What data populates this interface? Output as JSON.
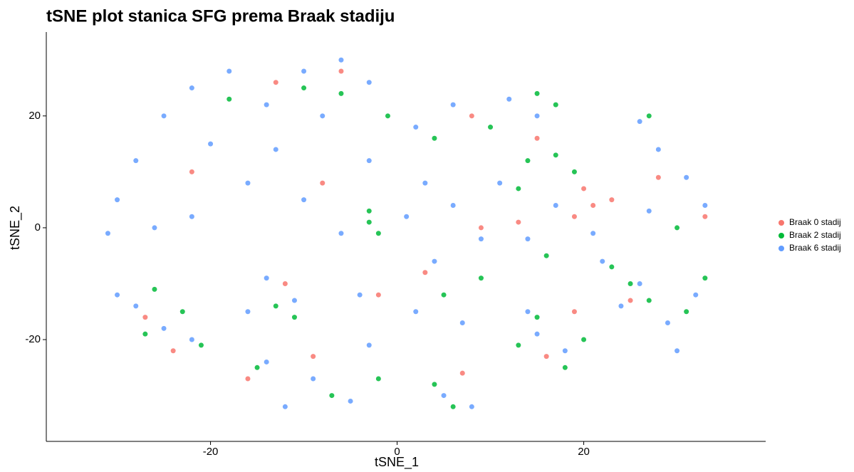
{
  "chart_data": {
    "type": "scatter",
    "title": "tSNE plot stanica SFG prema Braak stadiju",
    "x_label": "tSNE_1",
    "y_label": "tSNE_2",
    "xlim": [
      -37.6,
      39.5
    ],
    "ylim": [
      -38.2,
      35
    ],
    "xticks": [
      -20,
      0,
      20
    ],
    "yticks": [
      -20,
      0,
      20
    ],
    "grid": false,
    "legend_position": "right",
    "series": [
      {
        "name": "Braak 0 stadij",
        "color": "#F8766D",
        "x": [
          -27,
          -24,
          -12,
          -16,
          -9,
          -2,
          3,
          9,
          20,
          21,
          23,
          19,
          13,
          28,
          33,
          25,
          16,
          19,
          7,
          -13,
          -6,
          -22,
          -8,
          8,
          15
        ],
        "y": [
          -16,
          -22,
          -10,
          -27,
          -23,
          -12,
          -8,
          0,
          7,
          4,
          5,
          2,
          1,
          9,
          2,
          -13,
          -23,
          -15,
          -26,
          26,
          28,
          10,
          8,
          20,
          16
        ]
      },
      {
        "name": "Braak 2 stadij",
        "color": "#00BA38",
        "x": [
          -26,
          -23,
          -21,
          -27,
          -13,
          -11,
          -15,
          -7,
          -2,
          -3,
          -3,
          -2,
          -6,
          -1,
          4,
          10,
          15,
          17,
          14,
          17,
          19,
          13,
          16,
          23,
          25,
          27,
          31,
          33,
          15,
          13,
          18,
          20,
          6,
          4,
          -10,
          -18,
          27,
          30,
          5,
          9
        ],
        "y": [
          -11,
          -15,
          -21,
          -19,
          -14,
          -16,
          -25,
          -30,
          -27,
          3,
          1,
          -1,
          24,
          20,
          16,
          18,
          24,
          22,
          12,
          13,
          10,
          7,
          -5,
          -7,
          -10,
          -13,
          -15,
          -9,
          -16,
          -21,
          -25,
          -20,
          -32,
          -28,
          25,
          23,
          20,
          0,
          -12,
          -9
        ]
      },
      {
        "name": "Braak 6 stadij",
        "color": "#619CFF",
        "x": [
          -30,
          -28,
          -25,
          -22,
          -18,
          -14,
          -20,
          -16,
          -26,
          -31,
          -22,
          -13,
          -10,
          -6,
          -3,
          -8,
          -10,
          -6,
          -3,
          2,
          6,
          12,
          15,
          3,
          6,
          9,
          4,
          1,
          11,
          14,
          17,
          21,
          26,
          28,
          31,
          33,
          27,
          -28,
          -25,
          -22,
          -30,
          -14,
          -11,
          -16,
          -14,
          -9,
          -5,
          -12,
          -3,
          -4,
          2,
          7,
          5,
          8,
          14,
          18,
          15,
          22,
          26,
          24,
          29,
          32,
          30
        ],
        "y": [
          5,
          12,
          20,
          25,
          28,
          22,
          15,
          8,
          0,
          -1,
          2,
          14,
          28,
          30,
          26,
          20,
          5,
          -1,
          12,
          18,
          22,
          23,
          20,
          8,
          4,
          -2,
          -6,
          2,
          8,
          -2,
          4,
          -1,
          19,
          14,
          9,
          4,
          3,
          -14,
          -18,
          -20,
          -12,
          -9,
          -13,
          -15,
          -24,
          -27,
          -31,
          -32,
          -21,
          -12,
          -15,
          -17,
          -30,
          -32,
          -15,
          -22,
          -19,
          -6,
          -10,
          -14,
          -17,
          -12,
          -22
        ]
      }
    ]
  }
}
